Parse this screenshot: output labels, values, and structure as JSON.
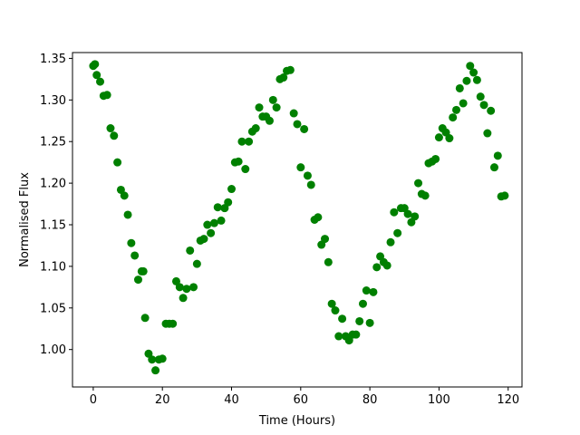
{
  "chart_data": {
    "type": "scatter",
    "title": "",
    "xlabel": "Time (Hours)",
    "ylabel": "Normalised Flux",
    "xlim": [
      -6,
      124
    ],
    "ylim": [
      0.955,
      1.357
    ],
    "xticks": [
      0,
      20,
      40,
      60,
      80,
      100,
      120
    ],
    "yticks": [
      1.0,
      1.05,
      1.1,
      1.15,
      1.2,
      1.25,
      1.3,
      1.35
    ],
    "xtick_labels": [
      "0",
      "20",
      "40",
      "60",
      "80",
      "100",
      "120"
    ],
    "ytick_labels": [
      "1.00",
      "1.05",
      "1.10",
      "1.15",
      "1.20",
      "1.25",
      "1.30",
      "1.35"
    ],
    "grid": false,
    "marker_color": "#008000",
    "series": [
      {
        "x": [
          0,
          0.5,
          1,
          2,
          3,
          4,
          5,
          6,
          7,
          8,
          9,
          10,
          11,
          12,
          13,
          14,
          14.5,
          15,
          16,
          17,
          18,
          19,
          20,
          21,
          22,
          23,
          24,
          25,
          26,
          27,
          28,
          29,
          30,
          31,
          32,
          33,
          34,
          35,
          36,
          37,
          38,
          39,
          40,
          41,
          42,
          43,
          44,
          45,
          46,
          47,
          48,
          49,
          50,
          51,
          52,
          53,
          54,
          55,
          56,
          57,
          58,
          59,
          60,
          61,
          62,
          63,
          64,
          65,
          66,
          67,
          68,
          69,
          70,
          71,
          72,
          73,
          74,
          75,
          76,
          77,
          78,
          79,
          80,
          81,
          82,
          83,
          84,
          85,
          86,
          87,
          88,
          89,
          90,
          91,
          92,
          93,
          94,
          95,
          96,
          97,
          98,
          99,
          100,
          101,
          102,
          103,
          104,
          105,
          106,
          107,
          108,
          109,
          110,
          111,
          112,
          113,
          114,
          115,
          116,
          117,
          118,
          119
        ],
        "y": [
          1.341,
          1.343,
          1.33,
          1.322,
          1.305,
          1.306,
          1.266,
          1.257,
          1.225,
          1.192,
          1.185,
          1.162,
          1.128,
          1.113,
          1.084,
          1.094,
          1.094,
          1.038,
          0.995,
          0.988,
          0.975,
          0.988,
          0.989,
          1.031,
          1.031,
          1.031,
          1.082,
          1.075,
          1.062,
          1.073,
          1.119,
          1.075,
          1.103,
          1.131,
          1.133,
          1.15,
          1.14,
          1.152,
          1.171,
          1.155,
          1.17,
          1.177,
          1.193,
          1.225,
          1.226,
          1.25,
          1.217,
          1.25,
          1.262,
          1.266,
          1.291,
          1.28,
          1.28,
          1.275,
          1.3,
          1.291,
          1.325,
          1.327,
          1.335,
          1.336,
          1.284,
          1.271,
          1.219,
          1.265,
          1.209,
          1.198,
          1.156,
          1.159,
          1.126,
          1.133,
          1.105,
          1.055,
          1.047,
          1.016,
          1.037,
          1.016,
          1.011,
          1.018,
          1.018,
          1.034,
          1.055,
          1.071,
          1.032,
          1.069,
          1.099,
          1.112,
          1.105,
          1.101,
          1.129,
          1.165,
          1.14,
          1.17,
          1.17,
          1.163,
          1.153,
          1.16,
          1.2,
          1.187,
          1.185,
          1.224,
          1.226,
          1.229,
          1.255,
          1.266,
          1.261,
          1.254,
          1.279,
          1.288,
          1.314,
          1.296,
          1.323,
          1.341,
          1.333,
          1.324,
          1.304,
          1.294,
          1.26,
          1.287,
          1.219,
          1.233,
          1.184,
          1.185
        ]
      }
    ]
  }
}
